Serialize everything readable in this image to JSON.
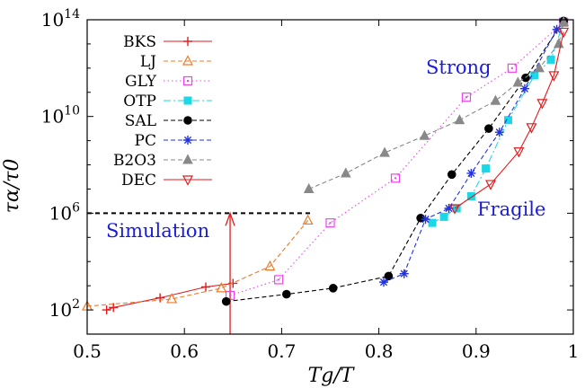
{
  "chart_data": {
    "type": "scatter",
    "xlabel": "Tg/T",
    "ylabel": "τα/τ0",
    "xlim": [
      0.5,
      1.0
    ],
    "ylim": [
      1,
      14
    ],
    "y_scale": "log10",
    "grid": false,
    "x_ticks": [
      {
        "value": 0.5,
        "label": "0.5"
      },
      {
        "value": 0.6,
        "label": "0.6"
      },
      {
        "value": 0.7,
        "label": "0.7"
      },
      {
        "value": 0.8,
        "label": "0.8"
      },
      {
        "value": 0.9,
        "label": "0.9"
      },
      {
        "value": 1.0,
        "label": "1"
      }
    ],
    "y_ticks": [
      {
        "value": 2,
        "base": "10",
        "exp": "2"
      },
      {
        "value": 6,
        "base": "10",
        "exp": "6"
      },
      {
        "value": 10,
        "base": "10",
        "exp": "10"
      },
      {
        "value": 14,
        "base": "10",
        "exp": "14"
      }
    ],
    "legend_position": "top-left",
    "series": [
      {
        "name": "BKS",
        "color": "#e41a1c",
        "marker": "plus",
        "line": "solid",
        "x": [
          0.52,
          0.527,
          0.575,
          0.622,
          0.65
        ],
        "y": [
          2.0,
          2.1,
          2.5,
          2.95,
          3.1
        ]
      },
      {
        "name": "LJ",
        "color": "#ec7a28",
        "marker": "triangle-up",
        "line": "dashed",
        "x": [
          0.5,
          0.587,
          0.638,
          0.688,
          0.727
        ],
        "y": [
          2.15,
          2.45,
          2.9,
          3.8,
          5.7
        ]
      },
      {
        "name": "GLY",
        "color": "#ee44ee",
        "marker": "square-open",
        "line": "dotted",
        "x": [
          0.647,
          0.697,
          0.75,
          0.817,
          0.89,
          0.937,
          0.99
        ],
        "y": [
          2.6,
          3.25,
          5.6,
          7.45,
          10.8,
          12.0,
          13.9
        ]
      },
      {
        "name": "OTP",
        "color": "#1ad8e6",
        "marker": "square-filled",
        "line": "dashdot",
        "x": [
          0.855,
          0.867,
          0.88,
          0.895,
          0.91,
          0.933,
          0.96,
          0.977,
          0.99
        ],
        "y": [
          5.6,
          5.85,
          6.2,
          6.7,
          7.85,
          9.85,
          11.7,
          12.35,
          13.9
        ]
      },
      {
        "name": "SAL",
        "color": "#000000",
        "marker": "circle-filled",
        "line": "dashed",
        "x": [
          0.643,
          0.705,
          0.753,
          0.81,
          0.843,
          0.875,
          0.913,
          0.951,
          0.99
        ],
        "y": [
          2.35,
          2.65,
          2.9,
          3.4,
          5.8,
          7.6,
          9.5,
          11.6,
          13.95
        ]
      },
      {
        "name": "PC",
        "color": "#2233dd",
        "marker": "star",
        "line": "dashed",
        "x": [
          0.805,
          0.826,
          0.848,
          0.872,
          0.895,
          0.924,
          0.95,
          0.983
        ],
        "y": [
          3.15,
          3.5,
          5.75,
          6.2,
          7.65,
          9.35,
          11.15,
          13.6
        ]
      },
      {
        "name": "B2O3",
        "color": "#888888",
        "marker": "triangle-filled",
        "line": "dashed",
        "x": [
          0.728,
          0.766,
          0.806,
          0.847,
          0.883,
          0.92,
          0.943,
          0.965,
          0.985,
          0.99
        ],
        "y": [
          7.0,
          7.65,
          8.5,
          9.2,
          9.85,
          10.65,
          11.4,
          12.0,
          13.0,
          13.9
        ]
      },
      {
        "name": "DEC",
        "color": "#e41a1c",
        "marker": "triangle-down-open",
        "line": "solid",
        "x": [
          0.878,
          0.915,
          0.944,
          0.957,
          0.968,
          0.98,
          0.99
        ],
        "y": [
          6.2,
          7.2,
          8.55,
          9.55,
          10.55,
          11.7,
          13.5
        ]
      }
    ],
    "annotations": {
      "simulation_label": "Simulation",
      "strong_label": "Strong",
      "fragile_label": "Fragile",
      "simulation_limit": {
        "y": 6,
        "x_from": 0.5,
        "x_to": 0.73,
        "color": "#000000"
      },
      "arrow": {
        "x": 0.647,
        "y_from": 1,
        "y_to": 6,
        "color": "#e41a1c"
      },
      "label_color": "#1a1adc"
    }
  }
}
